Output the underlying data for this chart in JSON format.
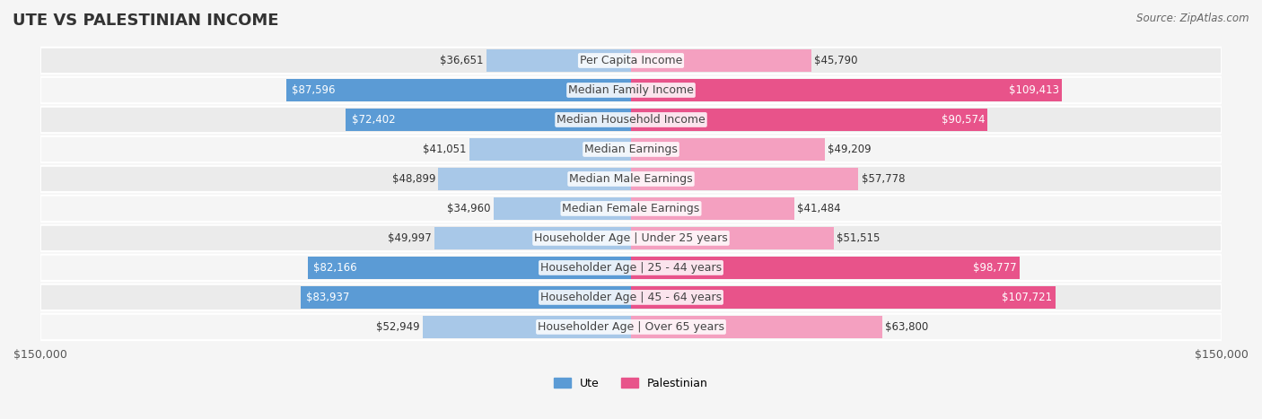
{
  "title": "UTE VS PALESTINIAN INCOME",
  "source": "Source: ZipAtlas.com",
  "categories": [
    "Per Capita Income",
    "Median Family Income",
    "Median Household Income",
    "Median Earnings",
    "Median Male Earnings",
    "Median Female Earnings",
    "Householder Age | Under 25 years",
    "Householder Age | 25 - 44 years",
    "Householder Age | 45 - 64 years",
    "Householder Age | Over 65 years"
  ],
  "ute_values": [
    36651,
    87596,
    72402,
    41051,
    48899,
    34960,
    49997,
    82166,
    83937,
    52949
  ],
  "palestinian_values": [
    45790,
    109413,
    90574,
    49209,
    57778,
    41484,
    51515,
    98777,
    107721,
    63800
  ],
  "ute_color_light": "#a8c8e8",
  "ute_color_dark": "#5b9bd5",
  "palestinian_color_light": "#f4a0c0",
  "palestinian_color_dark": "#e8538a",
  "max_value": 150000,
  "background_color": "#f5f5f5",
  "row_bg_color": "#ebebeb",
  "row_bg_color2": "#f5f5f5",
  "title_fontsize": 13,
  "label_fontsize": 9,
  "value_fontsize": 8.5
}
